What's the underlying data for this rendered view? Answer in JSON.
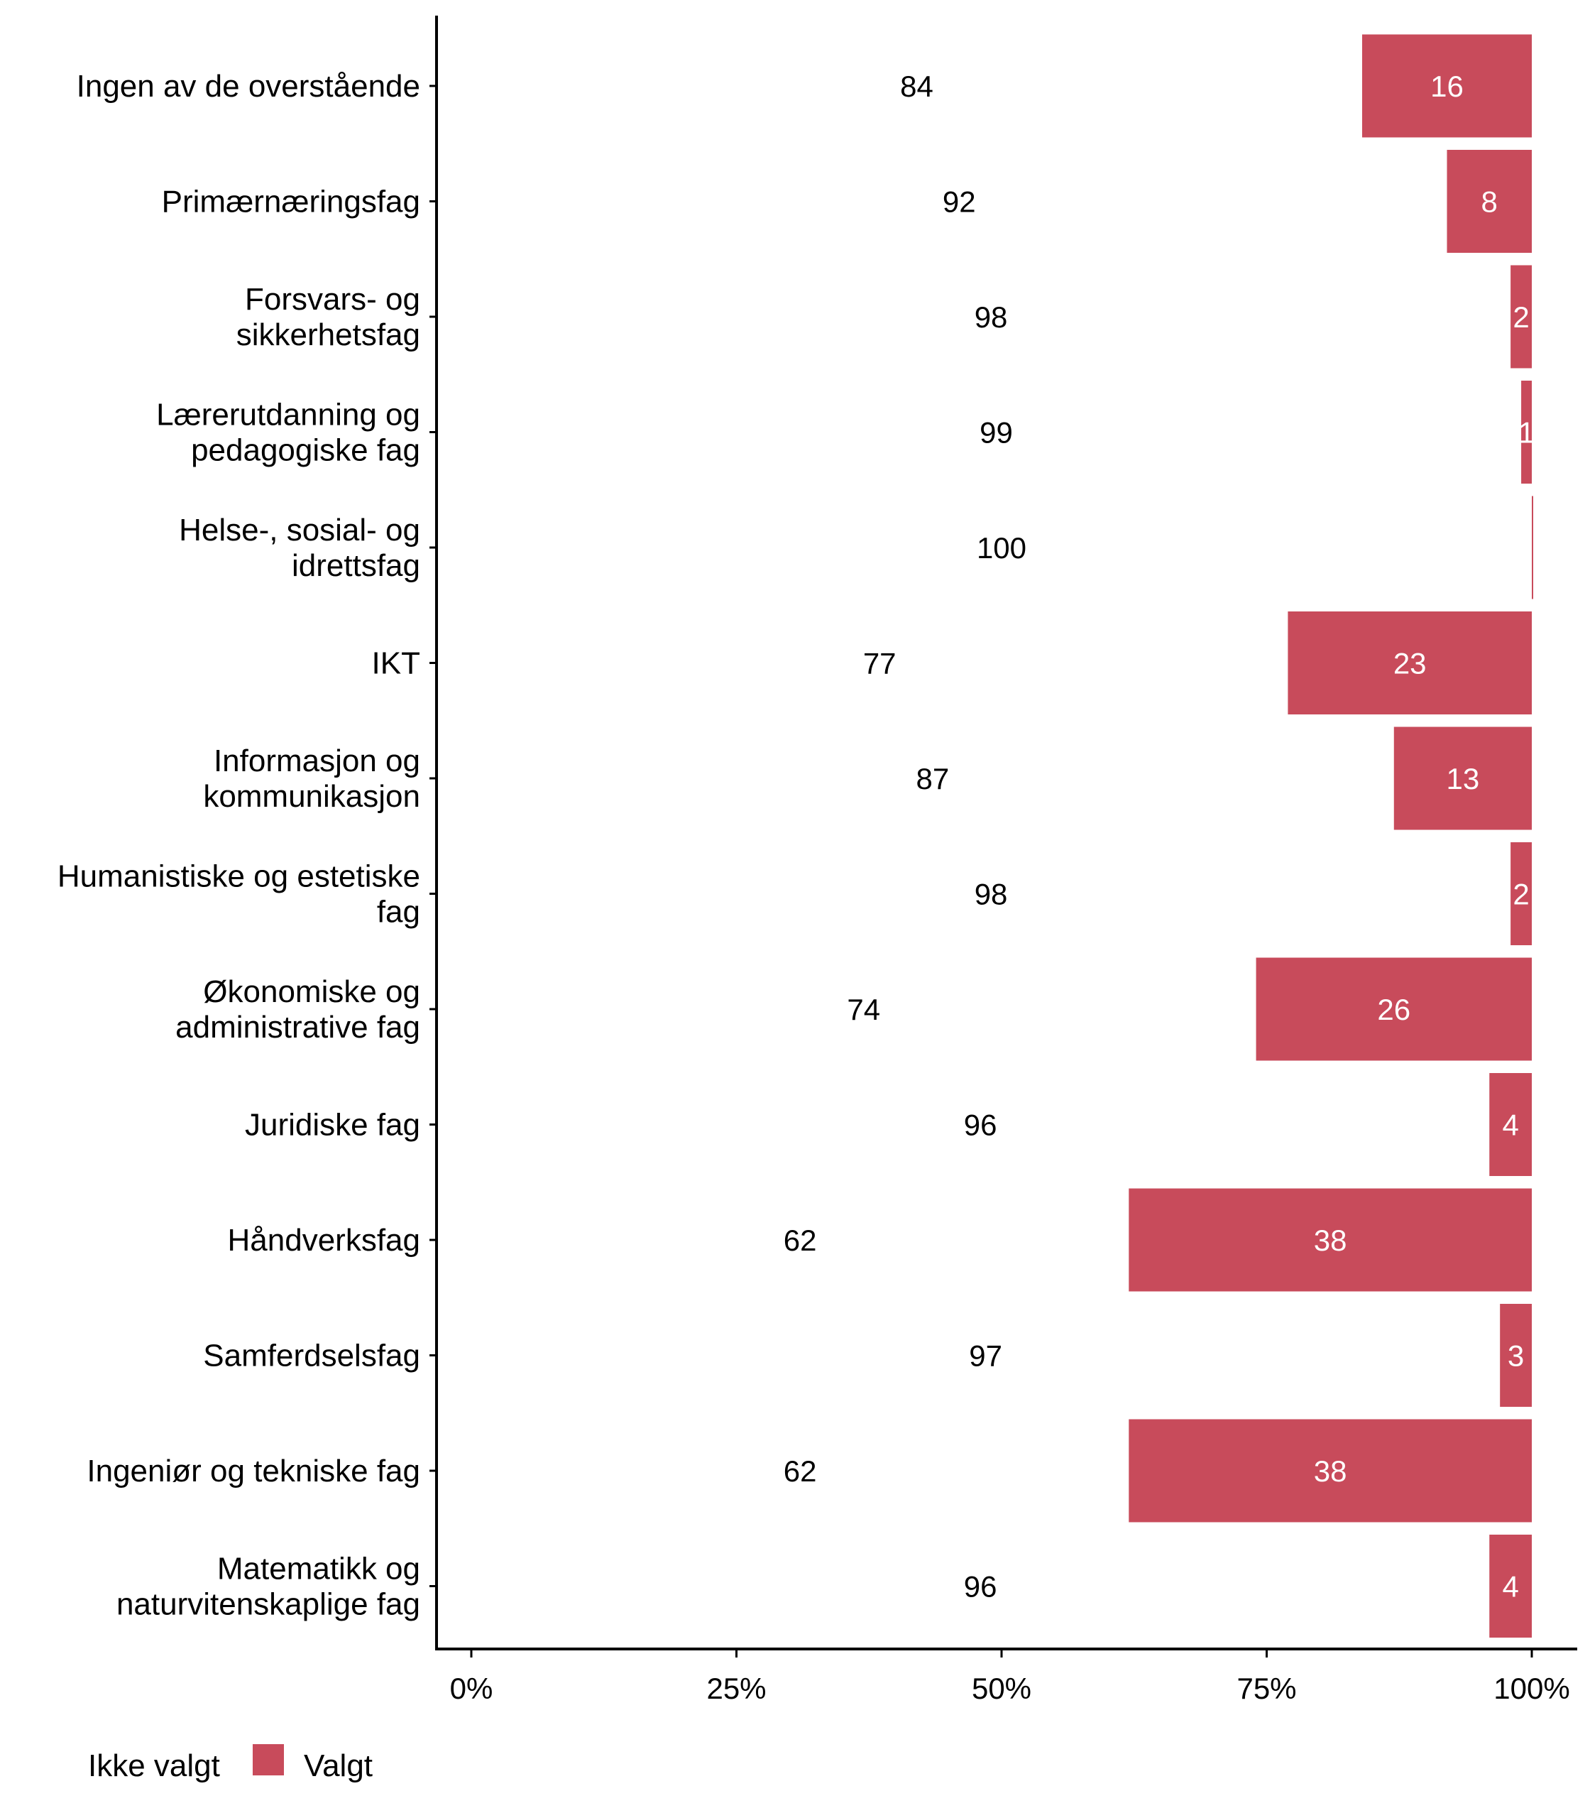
{
  "chart_data": {
    "type": "bar",
    "orientation": "horizontal",
    "stacked": "percent",
    "title": "",
    "xlabel": "",
    "ylabel": "",
    "xlim": [
      0,
      100
    ],
    "x_ticks": [
      "0%",
      "25%",
      "50%",
      "75%",
      "100%"
    ],
    "x_tick_values": [
      0,
      25,
      50,
      75,
      100
    ],
    "grid": false,
    "legend_position": "bottom-left",
    "categories": [
      [
        "Ingen av de overstående"
      ],
      [
        "Primærnæringsfag"
      ],
      [
        "Forsvars- og",
        "sikkerhetsfag"
      ],
      [
        "Lærerutdanning og",
        "pedagogiske fag"
      ],
      [
        "Helse-, sosial- og",
        "idrettsfag"
      ],
      [
        "IKT"
      ],
      [
        "Informasjon og",
        "kommunikasjon"
      ],
      [
        "Humanistiske og estetiske",
        "fag"
      ],
      [
        "Økonomiske og",
        "administrative fag"
      ],
      [
        "Juridiske fag"
      ],
      [
        "Håndverksfag"
      ],
      [
        "Samferdselsfag"
      ],
      [
        "Ingeniør og tekniske fag"
      ],
      [
        "Matematikk og",
        "naturvitenskaplige fag"
      ]
    ],
    "series": [
      {
        "name": "Ikke valgt",
        "color": "#ffffff",
        "values": [
          84,
          92,
          98,
          99,
          100,
          77,
          87,
          98,
          74,
          96,
          62,
          97,
          62,
          96
        ]
      },
      {
        "name": "Valgt",
        "color": "#c84b5b",
        "values": [
          16,
          8,
          2,
          1,
          0.5,
          23,
          13,
          2,
          26,
          4,
          38,
          3,
          38,
          4
        ]
      }
    ],
    "data_labels": {
      "Ikke valgt": [
        "84",
        "92",
        "98",
        "99",
        "100",
        "77",
        "87",
        "98",
        "74",
        "96",
        "62",
        "97",
        "62",
        "96"
      ],
      "Valgt": [
        "16",
        "8",
        "2",
        "1",
        "",
        "23",
        "13",
        "2",
        "26",
        "4",
        "38",
        "3",
        "38",
        "4"
      ]
    }
  },
  "legend": {
    "items": [
      {
        "label": "Ikke valgt",
        "color": "#ffffff"
      },
      {
        "label": "Valgt",
        "color": "#c84b5b"
      }
    ]
  }
}
